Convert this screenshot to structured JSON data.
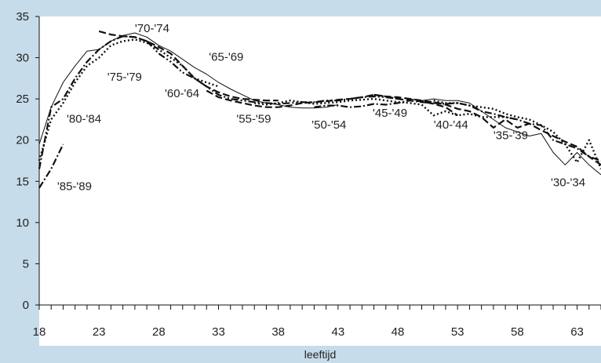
{
  "chart_data": {
    "type": "line",
    "title": "",
    "xlabel": "leeftijd",
    "ylabel": "",
    "xlim": [
      18,
      65
    ],
    "ylim": [
      0,
      35
    ],
    "x_ticks": [
      18,
      23,
      28,
      33,
      38,
      43,
      48,
      53,
      58,
      63
    ],
    "y_ticks": [
      0,
      5,
      10,
      15,
      20,
      25,
      30,
      35
    ],
    "grid": false,
    "legend": "none",
    "series": [
      {
        "name": "'85-'89",
        "style": "dashdot",
        "points": [
          [
            18,
            14.2
          ],
          [
            19,
            16.5
          ],
          [
            20,
            19.5
          ]
        ],
        "label": {
          "text": "'85-'89",
          "x": 19.5,
          "y": 14.3
        }
      },
      {
        "name": "'80-'84",
        "style": "dashdot",
        "points": [
          [
            18,
            16.5
          ],
          [
            19,
            24.0
          ],
          [
            20,
            25.0
          ],
          [
            21,
            27.5
          ],
          [
            22,
            29.5
          ],
          [
            23,
            31.0
          ],
          [
            24,
            32.0
          ],
          [
            25,
            32.6
          ],
          [
            26,
            32.5
          ],
          [
            27,
            32.0
          ],
          [
            28,
            31.0
          ]
        ],
        "label": {
          "text": "'80-'84",
          "x": 20.3,
          "y": 22.5
        }
      },
      {
        "name": "'75-'79",
        "style": "dotted",
        "points": [
          [
            18,
            17.5
          ],
          [
            19,
            22.5
          ],
          [
            20,
            24.5
          ],
          [
            21,
            27.0
          ],
          [
            22,
            29.0
          ],
          [
            23,
            30.0
          ],
          [
            24,
            31.5
          ],
          [
            25,
            32.0
          ],
          [
            26,
            32.2
          ],
          [
            27,
            31.8
          ],
          [
            28,
            31.0
          ],
          [
            29,
            30.0
          ],
          [
            30,
            29.0
          ],
          [
            31,
            27.5
          ],
          [
            32,
            27.0
          ],
          [
            33,
            26.5
          ]
        ],
        "label": {
          "text": "'75-'79",
          "x": 23.7,
          "y": 27.6
        }
      },
      {
        "name": "'70-'74",
        "style": "dashed",
        "points": [
          [
            23,
            33.2
          ],
          [
            24,
            32.8
          ],
          [
            25,
            32.6
          ],
          [
            26,
            32.5
          ],
          [
            27,
            32.0
          ],
          [
            28,
            31.3
          ],
          [
            29,
            30.5
          ],
          [
            30,
            29.0
          ],
          [
            31,
            27.5
          ],
          [
            32,
            26.5
          ],
          [
            33,
            25.8
          ],
          [
            34,
            25.3
          ],
          [
            35,
            25.0
          ],
          [
            36,
            24.9
          ],
          [
            37,
            24.8
          ],
          [
            38,
            24.8
          ]
        ],
        "label": {
          "text": "'70-'74",
          "x": 26.0,
          "y": 33.5
        }
      },
      {
        "name": "'65-'69",
        "style": "solid",
        "points": [
          [
            18,
            19.5
          ],
          [
            19,
            24.0
          ],
          [
            20,
            27.0
          ],
          [
            21,
            29.0
          ],
          [
            22,
            30.8
          ],
          [
            23,
            31.0
          ],
          [
            24,
            32.0
          ],
          [
            25,
            32.7
          ],
          [
            26,
            33.0
          ],
          [
            27,
            32.5
          ],
          [
            28,
            31.5
          ],
          [
            29,
            30.8
          ],
          [
            30,
            29.8
          ],
          [
            31,
            28.8
          ],
          [
            32,
            28.0
          ],
          [
            33,
            27.0
          ],
          [
            34,
            26.2
          ],
          [
            35,
            25.5
          ],
          [
            36,
            24.8
          ],
          [
            37,
            24.5
          ],
          [
            38,
            24.3
          ],
          [
            39,
            24.0
          ],
          [
            40,
            23.9
          ],
          [
            41,
            23.9
          ],
          [
            42,
            24.0
          ],
          [
            43,
            24.3
          ]
        ],
        "label": {
          "text": "'65-'69",
          "x": 32.2,
          "y": 30.0
        }
      },
      {
        "name": "'60-'64",
        "style": "dashdotdot",
        "points": [
          [
            27,
            32.0
          ],
          [
            28,
            30.5
          ],
          [
            29,
            29.5
          ],
          [
            30,
            28.2
          ],
          [
            31,
            27.5
          ],
          [
            32,
            26.5
          ],
          [
            33,
            25.5
          ],
          [
            34,
            25.0
          ],
          [
            35,
            24.8
          ],
          [
            36,
            24.6
          ],
          [
            37,
            24.5
          ],
          [
            38,
            24.4
          ],
          [
            39,
            24.5
          ],
          [
            40,
            24.6
          ],
          [
            41,
            24.6
          ],
          [
            42,
            24.8
          ],
          [
            43,
            24.8
          ],
          [
            44,
            25.0
          ],
          [
            45,
            25.2
          ],
          [
            46,
            25.3
          ],
          [
            47,
            25.2
          ],
          [
            48,
            25.0
          ]
        ],
        "label": {
          "text": "'60-'64",
          "x": 28.5,
          "y": 25.6
        }
      },
      {
        "name": "'55-'59",
        "style": "dashed",
        "points": [
          [
            32,
            26.0
          ],
          [
            33,
            25.2
          ],
          [
            34,
            24.8
          ],
          [
            35,
            24.5
          ],
          [
            36,
            24.2
          ],
          [
            37,
            24.0
          ],
          [
            38,
            24.0
          ],
          [
            39,
            24.2
          ],
          [
            40,
            24.5
          ],
          [
            41,
            24.6
          ],
          [
            42,
            24.7
          ],
          [
            43,
            24.9
          ],
          [
            44,
            25.0
          ],
          [
            45,
            25.2
          ],
          [
            46,
            25.5
          ],
          [
            47,
            25.3
          ],
          [
            48,
            25.0
          ],
          [
            49,
            24.8
          ],
          [
            50,
            24.7
          ],
          [
            51,
            24.4
          ],
          [
            52,
            24.0
          ],
          [
            53,
            23.0
          ]
        ],
        "label": {
          "text": "'55-'59",
          "x": 34.5,
          "y": 22.5
        }
      },
      {
        "name": "'50-'54",
        "style": "dotted",
        "points": [
          [
            36,
            24.5
          ],
          [
            37,
            24.3
          ],
          [
            38,
            24.5
          ],
          [
            39,
            24.8
          ],
          [
            40,
            24.6
          ],
          [
            41,
            24.4
          ],
          [
            42,
            24.5
          ],
          [
            43,
            24.6
          ],
          [
            44,
            24.8
          ],
          [
            45,
            24.9
          ],
          [
            46,
            25.0
          ],
          [
            47,
            24.8
          ],
          [
            48,
            24.6
          ],
          [
            49,
            24.5
          ],
          [
            50,
            24.3
          ],
          [
            51,
            23.0
          ],
          [
            52,
            23.5
          ],
          [
            53,
            23.0
          ],
          [
            54,
            23.2
          ],
          [
            55,
            22.8
          ],
          [
            56,
            22.8
          ],
          [
            57,
            22.8
          ],
          [
            58,
            22.5
          ]
        ],
        "label": {
          "text": "'50-'54",
          "x": 40.8,
          "y": 21.8
        }
      },
      {
        "name": "'45-'49",
        "style": "dashdot",
        "points": [
          [
            41,
            24.0
          ],
          [
            42,
            24.2
          ],
          [
            43,
            24.2
          ],
          [
            44,
            24.0
          ],
          [
            45,
            24.1
          ],
          [
            46,
            24.4
          ],
          [
            47,
            24.3
          ],
          [
            48,
            24.5
          ],
          [
            49,
            24.8
          ],
          [
            50,
            24.6
          ],
          [
            51,
            24.5
          ],
          [
            52,
            24.4
          ],
          [
            53,
            24.5
          ],
          [
            54,
            24.2
          ],
          [
            55,
            23.5
          ],
          [
            56,
            23.2
          ],
          [
            57,
            22.8
          ],
          [
            58,
            22.5
          ],
          [
            59,
            22.0
          ],
          [
            60,
            21.8
          ],
          [
            61,
            20.0
          ],
          [
            62,
            19.5
          ],
          [
            63,
            19.0
          ],
          [
            64,
            18.0
          ],
          [
            65,
            17.5
          ]
        ],
        "label": {
          "text": "'45-'49",
          "x": 45.9,
          "y": 23.2
        }
      },
      {
        "name": "'40-'44",
        "style": "dashed",
        "points": [
          [
            46,
            25.5
          ],
          [
            47,
            25.3
          ],
          [
            48,
            25.2
          ],
          [
            49,
            25.0
          ],
          [
            50,
            24.8
          ],
          [
            51,
            24.6
          ],
          [
            52,
            24.3
          ],
          [
            53,
            23.8
          ],
          [
            54,
            23.5
          ],
          [
            55,
            22.8
          ],
          [
            56,
            21.5
          ],
          [
            57,
            22.5
          ],
          [
            58,
            21.5
          ],
          [
            59,
            22.0
          ],
          [
            60,
            21.2
          ],
          [
            61,
            20.5
          ],
          [
            62,
            19.8
          ],
          [
            63,
            19.2
          ],
          [
            64,
            18.0
          ],
          [
            65,
            17.0
          ]
        ],
        "label": {
          "text": "'40-'44",
          "x": 51.0,
          "y": 21.8
        }
      },
      {
        "name": "'35-'39",
        "style": "dotted",
        "points": [
          [
            51,
            24.8
          ],
          [
            52,
            24.5
          ],
          [
            53,
            24.5
          ],
          [
            54,
            24.2
          ],
          [
            55,
            24.0
          ],
          [
            56,
            23.8
          ],
          [
            57,
            23.2
          ],
          [
            58,
            22.8
          ],
          [
            59,
            22.5
          ],
          [
            60,
            21.8
          ],
          [
            61,
            21.0
          ],
          [
            62,
            19.5
          ],
          [
            63,
            17.3
          ],
          [
            64,
            20.0
          ],
          [
            65,
            16.5
          ]
        ],
        "label": {
          "text": "'35-'39",
          "x": 56.0,
          "y": 20.5
        }
      },
      {
        "name": "'30-'34",
        "style": "solid",
        "points": [
          [
            49,
            25.0
          ],
          [
            50,
            24.8
          ],
          [
            51,
            25.0
          ],
          [
            52,
            24.8
          ],
          [
            53,
            24.8
          ],
          [
            54,
            24.5
          ],
          [
            55,
            23.5
          ],
          [
            56,
            22.5
          ],
          [
            57,
            21.5
          ],
          [
            58,
            21.0
          ],
          [
            59,
            20.5
          ],
          [
            60,
            20.8
          ],
          [
            61,
            18.5
          ],
          [
            62,
            17.0
          ],
          [
            63,
            18.5
          ],
          [
            64,
            17.0
          ],
          [
            65,
            15.8
          ]
        ],
        "label": {
          "text": "'30-'34",
          "x": 60.8,
          "y": 14.8
        }
      }
    ]
  }
}
